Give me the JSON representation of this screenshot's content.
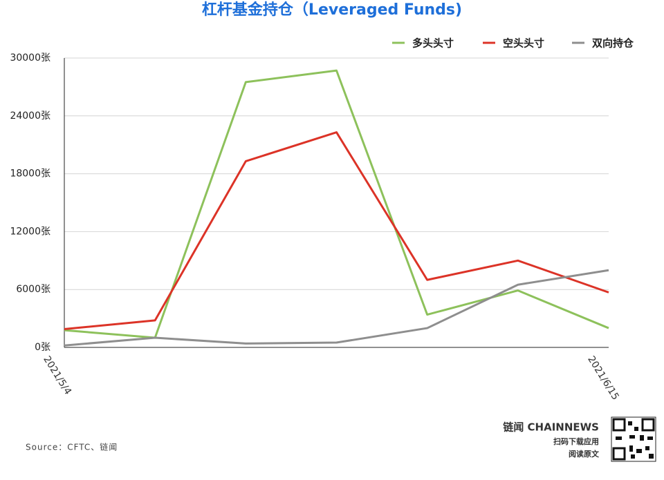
{
  "chart_data": {
    "type": "line",
    "title": "杠杆基金持仓（Leveraged Funds)",
    "categories": [
      "2021/5/4",
      null,
      null,
      null,
      null,
      null,
      "2021/6/15"
    ],
    "series": [
      {
        "name": "多头头寸",
        "color": "#8dc15b",
        "values": [
          1780,
          1000,
          27500,
          28700,
          3400,
          5900,
          2000
        ]
      },
      {
        "name": "空头头寸",
        "color": "#dc3327",
        "values": [
          1900,
          2800,
          19300,
          22300,
          7000,
          9000,
          5700
        ]
      },
      {
        "name": "双向持仓",
        "color": "#8e8e8e",
        "values": [
          200,
          1000,
          400,
          500,
          2000,
          6500,
          8000
        ]
      }
    ],
    "ylim": [
      0,
      30000
    ],
    "yticks": [
      {
        "value": 0,
        "label": "0张"
      },
      {
        "value": 6000,
        "label": "6000张"
      },
      {
        "value": 12000,
        "label": "12000张"
      },
      {
        "value": 18000,
        "label": "18000张"
      },
      {
        "value": 24000,
        "label": "24000张"
      },
      {
        "value": 30000,
        "label": "30000张"
      }
    ],
    "grid": true,
    "legend": "top-right",
    "source": "Source：CFTC、链闻",
    "brand": "链闻 CHAINNEWS",
    "brand_line1": "扫码下载应用",
    "brand_line2": "阅读原文"
  }
}
